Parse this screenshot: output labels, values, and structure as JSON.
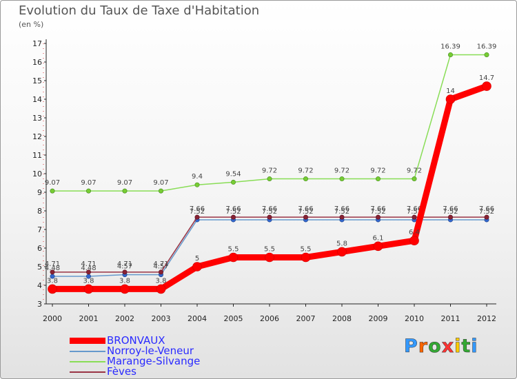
{
  "chart_data": {
    "type": "line",
    "title": "Evolution du Taux de Taxe d'Habitation",
    "unit_label": "(en %)",
    "x": [
      "2000",
      "2001",
      "2002",
      "2003",
      "2004",
      "2005",
      "2006",
      "2007",
      "2008",
      "2009",
      "2010",
      "2011",
      "2012"
    ],
    "ylim": [
      3,
      17
    ],
    "yticks": [
      3,
      4,
      5,
      6,
      7,
      8,
      9,
      10,
      11,
      12,
      13,
      14,
      15,
      16,
      17
    ],
    "grid": false,
    "legend_position": "bottom-left",
    "series": [
      {
        "name": "BRONVAUX",
        "color": "#ff0000",
        "values": [
          3.8,
          3.8,
          3.8,
          3.8,
          5,
          5.5,
          5.5,
          5.5,
          5.8,
          6.1,
          6.4,
          14,
          14.7
        ],
        "labels": [
          "3.8",
          "3.8",
          "3.8",
          "3.8",
          "5",
          "5.5",
          "5.5",
          "5.5",
          "5.8",
          "6.1",
          "6.4",
          "14",
          "14.7"
        ]
      },
      {
        "name": "Norroy-le-Veneur",
        "color": "#6699cc",
        "values": [
          4.48,
          4.48,
          4.57,
          4.57,
          7.52,
          7.52,
          7.52,
          7.52,
          7.52,
          7.52,
          7.52,
          7.52,
          7.52
        ],
        "labels": [
          "4.48",
          "4.48",
          "4.57",
          "4.57",
          "7.52",
          "7.52",
          "7.52",
          "7.52",
          "7.52",
          "7.52",
          "7.52",
          "7.52",
          "7.52"
        ]
      },
      {
        "name": "Marange-Silvange",
        "color": "#88dd55",
        "values": [
          9.07,
          9.07,
          9.07,
          9.07,
          9.4,
          9.54,
          9.72,
          9.72,
          9.72,
          9.72,
          9.72,
          16.39,
          16.39
        ],
        "labels": [
          "9.07",
          "9.07",
          "9.07",
          "9.07",
          "9.4",
          "9.54",
          "9.72",
          "9.72",
          "9.72",
          "9.72",
          "9.72",
          "16.39",
          "16.39"
        ]
      },
      {
        "name": "Fèves",
        "color": "#993344",
        "values": [
          4.71,
          4.71,
          4.71,
          4.71,
          7.66,
          7.66,
          7.66,
          7.66,
          7.66,
          7.66,
          7.66,
          7.66,
          7.66
        ],
        "labels": [
          "4.71",
          "4.71",
          "4.71",
          "4.71",
          "7.66",
          "7.66",
          "7.66",
          "7.66",
          "7.66",
          "7.66",
          "7.66",
          "7.66",
          "7.66"
        ]
      }
    ]
  },
  "logo": {
    "text": "Proxiti",
    "letters": [
      "P",
      "r",
      "o",
      "x",
      "i",
      "t",
      "i"
    ],
    "colors": [
      "#3399ff",
      "#ff6600",
      "#33aa33",
      "#ff3333",
      "#ffcc00",
      "#33aa33",
      "#3399ff"
    ]
  }
}
